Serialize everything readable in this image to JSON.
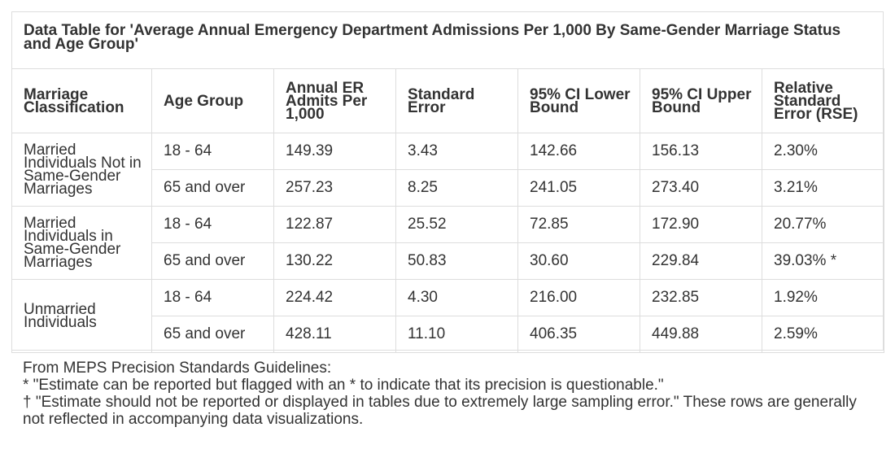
{
  "title": "Data Table for 'Average Annual Emergency Department Admissions Per 1,000 By Same-Gender Marriage Status and Age Group'",
  "columns": [
    "Marriage Classification",
    "Age Group",
    "Annual ER Admits Per 1,000",
    "Standard Error",
    "95% CI Lower Bound",
    "95% CI Upper Bound",
    "Relative Standard Error (RSE)"
  ],
  "groups": [
    {
      "classification": "Married Individuals Not in Same-Gender Marriages",
      "rows": [
        {
          "age": "18 - 64",
          "admits": "149.39",
          "se": "3.43",
          "lower": "142.66",
          "upper": "156.13",
          "rse": "2.30%"
        },
        {
          "age": "65 and over",
          "admits": "257.23",
          "se": "8.25",
          "lower": "241.05",
          "upper": "273.40",
          "rse": "3.21%"
        }
      ]
    },
    {
      "classification": "Married Individuals in Same-Gender Marriages",
      "rows": [
        {
          "age": "18 - 64",
          "admits": "122.87",
          "se": "25.52",
          "lower": "72.85",
          "upper": "172.90",
          "rse": "20.77%"
        },
        {
          "age": "65 and over",
          "admits": "130.22",
          "se": "50.83",
          "lower": "30.60",
          "upper": "229.84",
          "rse": "39.03% *"
        }
      ]
    },
    {
      "classification": "Unmarried Individuals",
      "rows": [
        {
          "age": "18 - 64",
          "admits": "224.42",
          "se": "4.30",
          "lower": "216.00",
          "upper": "232.85",
          "rse": "1.92%"
        },
        {
          "age": "65 and over",
          "admits": "428.11",
          "se": "11.10",
          "lower": "406.35",
          "upper": "449.88",
          "rse": "2.59%"
        }
      ]
    }
  ],
  "notes": {
    "heading": "From MEPS Precision Standards Guidelines:",
    "asterisk": "* \"Estimate can be reported but flagged with an * to indicate that its precision is questionable.\"",
    "dagger": "† \"Estimate should not be reported or displayed in tables due to extremely large sampling error.\" These rows are generally not reflected in accompanying data visualizations."
  }
}
